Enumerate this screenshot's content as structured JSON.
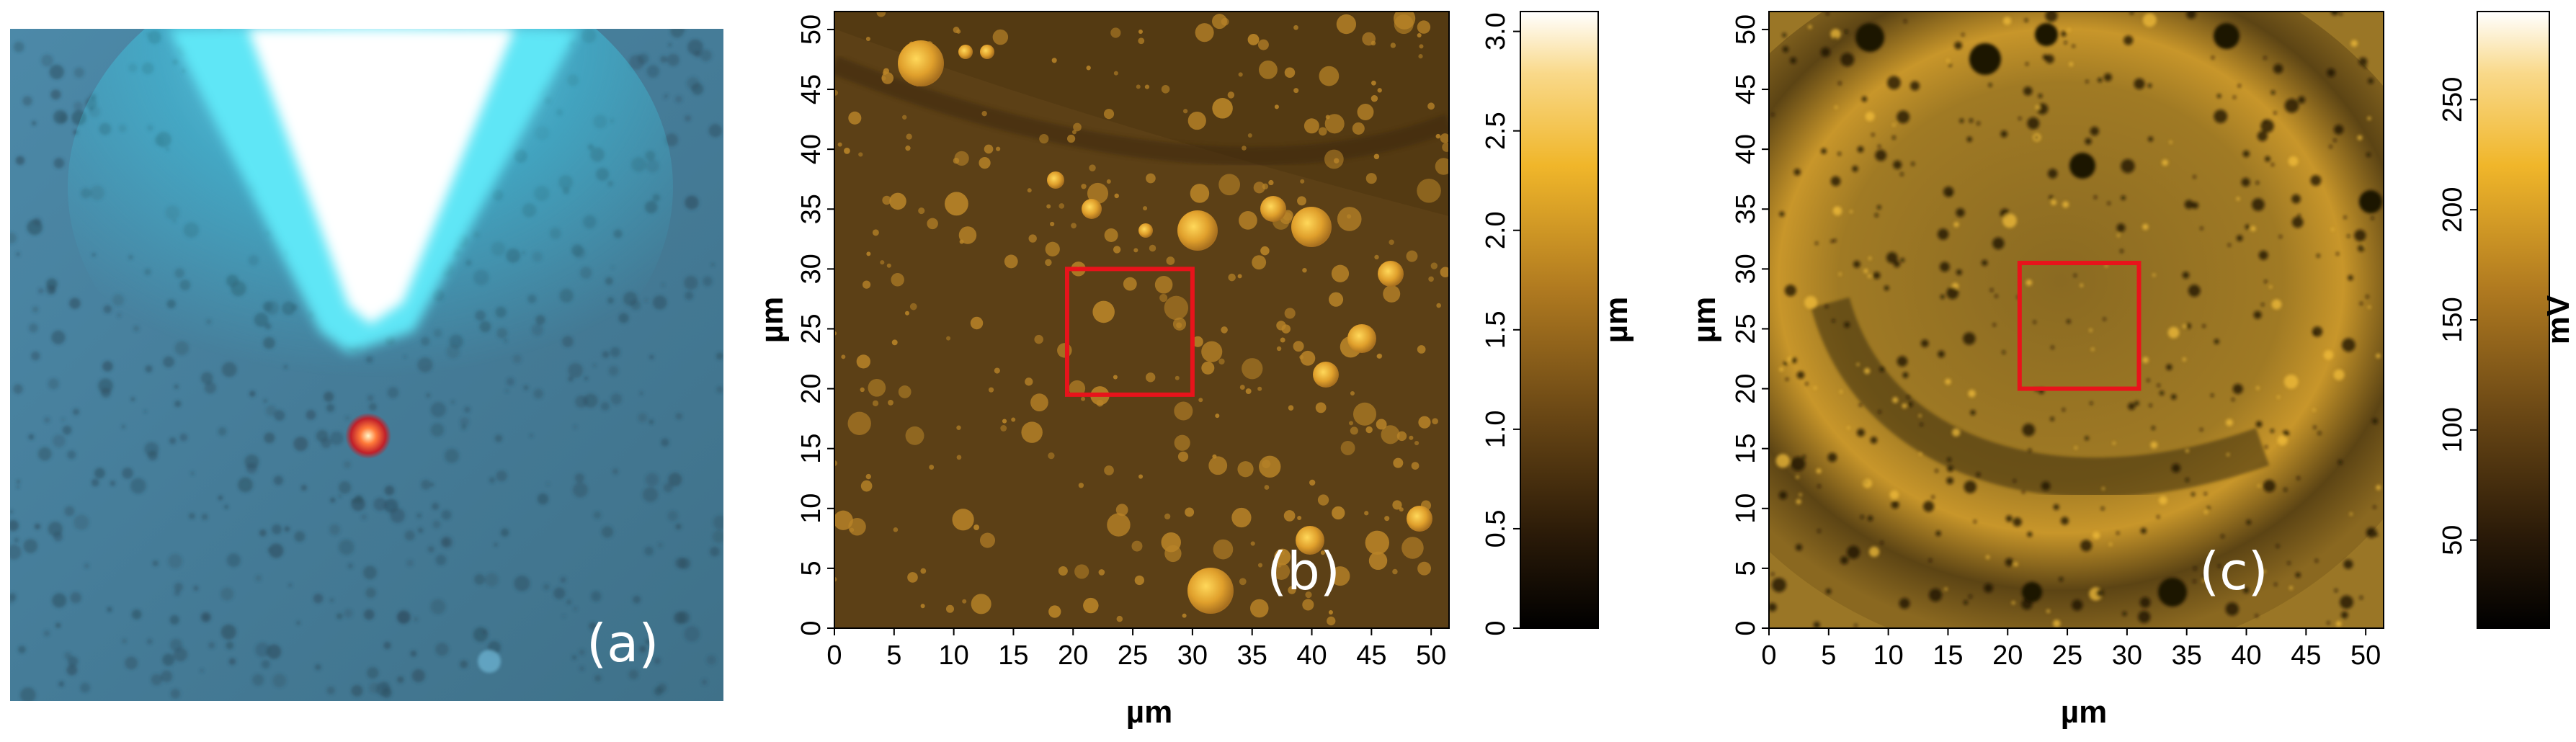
{
  "panels": {
    "a": {
      "label": "(a)"
    },
    "b": {
      "label": "(b)",
      "x_axis_label": "µm",
      "y_axis_label": "µm",
      "x_ticks": [
        "0",
        "5",
        "10",
        "15",
        "20",
        "25",
        "30",
        "35",
        "40",
        "45",
        "50"
      ],
      "y_ticks": [
        "0",
        "5",
        "10",
        "15",
        "20",
        "25",
        "30",
        "35",
        "40",
        "45",
        "50"
      ],
      "colorbar": {
        "label": "µm",
        "ticks": [
          "0",
          "0.5",
          "1.0",
          "1.5",
          "2.0",
          "2.5",
          "3.0"
        ],
        "range": [
          0,
          3.1
        ]
      },
      "highlight_box_um": {
        "x": [
          19.5,
          30
        ],
        "y": [
          19.5,
          30
        ]
      }
    },
    "c": {
      "label": "(c)",
      "x_axis_label": "µm",
      "y_axis_label": "µm",
      "x_ticks": [
        "0",
        "5",
        "10",
        "15",
        "20",
        "25",
        "30",
        "35",
        "40",
        "45",
        "50"
      ],
      "y_ticks": [
        "0",
        "5",
        "10",
        "15",
        "20",
        "25",
        "30",
        "35",
        "40",
        "45",
        "50"
      ],
      "colorbar": {
        "label": "mV",
        "ticks": [
          "50",
          "100",
          "150",
          "200",
          "250"
        ],
        "range": [
          10,
          290
        ]
      },
      "highlight_box_um": {
        "x": [
          21,
          31
        ],
        "y": [
          20,
          30.5
        ]
      }
    }
  },
  "colors": {
    "highlight_box": "#e8131b",
    "height_map_base": "#5a3d14",
    "potential_map_base": "#8a6a20",
    "optical_bg": "#4a7f9a"
  }
}
